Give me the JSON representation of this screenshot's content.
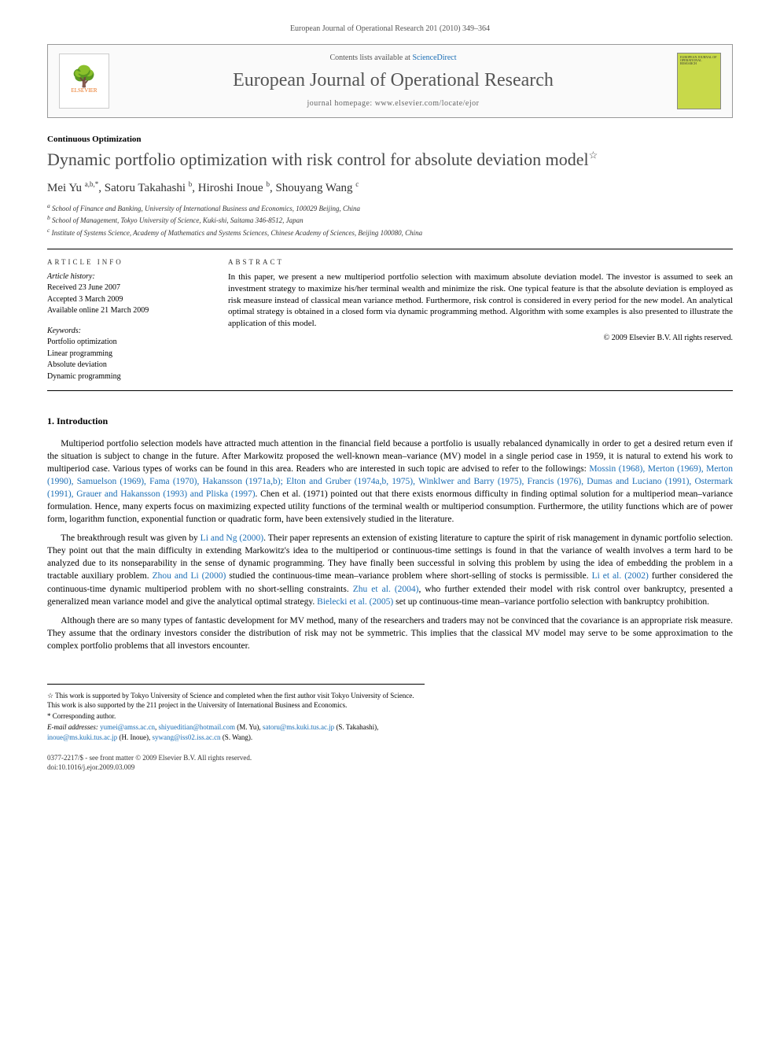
{
  "header_citation": "European Journal of Operational Research 201 (2010) 349–364",
  "banner": {
    "contents_prefix": "Contents lists available at ",
    "contents_link": "ScienceDirect",
    "journal_name": "European Journal of Operational Research",
    "homepage": "journal homepage: www.elsevier.com/locate/ejor",
    "publisher": "ELSEVIER",
    "cover_text": "EUROPEAN JOURNAL OF OPERATIONAL RESEARCH"
  },
  "article": {
    "section": "Continuous Optimization",
    "title": "Dynamic portfolio optimization with risk control for absolute deviation model",
    "star": "☆",
    "authors_html": "Mei Yu <sup>a,b,*</sup>, Satoru Takahashi <sup>b</sup>, Hiroshi Inoue <sup>b</sup>, Shouyang Wang <sup>c</sup>",
    "affiliations": [
      "a School of Finance and Banking, University of International Business and Economics, 100029 Beijing, China",
      "b School of Management, Tokyo University of Science, Kuki-shi, Saitama 346-8512, Japan",
      "c Institute of Systems Science, Academy of Mathematics and Systems Sciences, Chinese Academy of Sciences, Beijing 100080, China"
    ]
  },
  "info": {
    "heading": "ARTICLE INFO",
    "history_label": "Article history:",
    "history": [
      "Received 23 June 2007",
      "Accepted 3 March 2009",
      "Available online 21 March 2009"
    ],
    "keywords_label": "Keywords:",
    "keywords": [
      "Portfolio optimization",
      "Linear programming",
      "Absolute deviation",
      "Dynamic programming"
    ]
  },
  "abstract": {
    "heading": "ABSTRACT",
    "text": "In this paper, we present a new multiperiod portfolio selection with maximum absolute deviation model. The investor is assumed to seek an investment strategy to maximize his/her terminal wealth and minimize the risk. One typical feature is that the absolute deviation is employed as risk measure instead of classical mean variance method. Furthermore, risk control is considered in every period for the new model. An analytical optimal strategy is obtained in a closed form via dynamic programming method. Algorithm with some examples is also presented to illustrate the application of this model.",
    "copyright": "© 2009 Elsevier B.V. All rights reserved."
  },
  "body": {
    "section1_heading": "1. Introduction",
    "para1_pre": "Multiperiod portfolio selection models have attracted much attention in the financial field because a portfolio is usually rebalanced dynamically in order to get a desired return even if the situation is subject to change in the future. After Markowitz proposed the well-known mean–variance (MV) model in a single period case in 1959, it is natural to extend his work to multiperiod case. Various types of works can be found in this area. Readers who are interested in such topic are advised to refer to the followings: ",
    "para1_refs": "Mossin (1968), Merton (1969), Merton (1990), Samuelson (1969), Fama (1970), Hakansson (1971a,b); Elton and Gruber (1974a,b, 1975), Winklwer and Barry (1975), Francis (1976), Dumas and Luciano (1991), Ostermark (1991), Grauer and Hakansson (1993) and Pliska (1997)",
    "para1_post": ". Chen et al. (1971) pointed out that there exists enormous difficulty in finding optimal solution for a multiperiod mean–variance formulation. Hence, many experts focus on maximizing expected utility functions of the terminal wealth or multiperiod consumption. Furthermore, the utility functions which are of power form, logarithm function, exponential function or quadratic form, have been extensively studied in the literature.",
    "para2_pre": "The breakthrough result was given by ",
    "para2_ref1": "Li and Ng (2000)",
    "para2_mid1": ". Their paper represents an extension of existing literature to capture the spirit of risk management in dynamic portfolio selection. They point out that the main difficulty in extending Markowitz's idea to the multiperiod or continuous-time settings is found in that the variance of wealth involves a term hard to be analyzed due to its nonseparability in the sense of dynamic programming. They have finally been successful in solving this problem by using the idea of embedding the problem in a tractable auxiliary problem. ",
    "para2_ref2": "Zhou and Li (2000)",
    "para2_mid2": " studied the continuous-time mean–variance problem where short-selling of stocks is permissible. ",
    "para2_ref3": "Li et al. (2002)",
    "para2_mid3": " further considered the continuous-time dynamic multiperiod problem with no short-selling constraints. ",
    "para2_ref4": "Zhu et al. (2004)",
    "para2_mid4": ", who further extended their model with risk control over bankruptcy, presented a generalized mean variance model and give the analytical optimal strategy. ",
    "para2_ref5": "Bielecki et al. (2005)",
    "para2_post": " set up continuous-time mean–variance portfolio selection with bankruptcy prohibition.",
    "para3": "Although there are so many types of fantastic development for MV method, many of the researchers and traders may not be convinced that the covariance is an appropriate risk measure. They assume that the ordinary investors consider the distribution of risk may not be symmetric. This implies that the classical MV model may serve to be some approximation to the complex portfolio problems that all investors encounter."
  },
  "footnotes": {
    "note_star": "☆ This work is supported by Tokyo University of Science and completed when the first author visit Tokyo University of Science. This work is also supported by the 211 project in the University of International Business and Economics.",
    "note_corr": "* Corresponding author.",
    "emails_label": "E-mail addresses: ",
    "emails": [
      {
        "addr": "yumei@amss.ac.cn",
        "who": ""
      },
      {
        "addr": "shiyueditian@hotmail.com",
        "who": " (M. Yu), "
      },
      {
        "addr": "satoru@ms.kuki.tus.ac.jp",
        "who": " (S. Takahashi), "
      },
      {
        "addr": "inoue@ms.kuki.tus.ac.jp",
        "who": " (H. Inoue), "
      },
      {
        "addr": "sywang@iss02.iss.ac.cn",
        "who": " (S. Wang)."
      }
    ]
  },
  "bottom": {
    "issn_line": "0377-2217/$ - see front matter © 2009 Elsevier B.V. All rights reserved.",
    "doi_line": "doi:10.1016/j.ejor.2009.03.009"
  },
  "colors": {
    "link": "#1b6eb5",
    "title_gray": "#4a4a4a",
    "cover_green": "#c8d94a",
    "elsevier_orange": "#e9711c"
  }
}
